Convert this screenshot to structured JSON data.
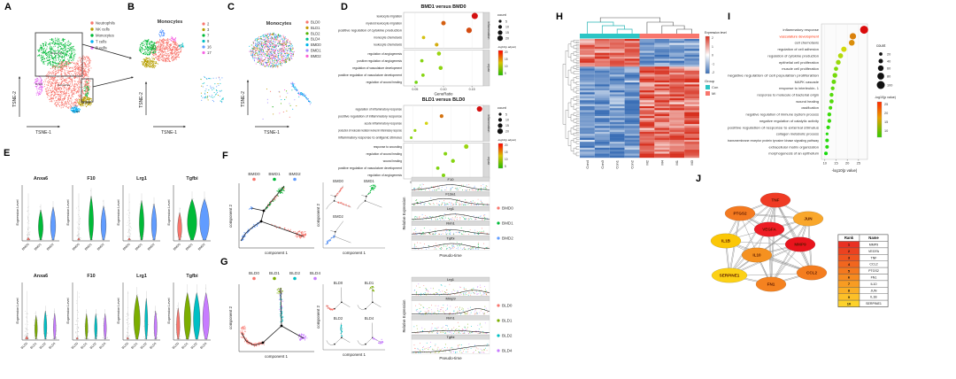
{
  "figure_panels": {
    "a": "A",
    "b": "B",
    "c": "C",
    "d": "D",
    "e": "E",
    "f": "F",
    "g": "G",
    "h": "H",
    "i": "I",
    "j": "J"
  },
  "panelA": {
    "axes": {
      "x": "TSNE-1",
      "y": "TSNE-2"
    },
    "legend": [
      {
        "label": "Neutrophils",
        "color": "#F8766D"
      },
      {
        "label": "NK cells",
        "color": "#B79F00"
      },
      {
        "label": "Monocytes",
        "color": "#00BA38"
      },
      {
        "label": "T cells",
        "color": "#00B0F6"
      },
      {
        "label": "B cells",
        "color": "#E76BF3"
      }
    ]
  },
  "panelB": {
    "title": "Monocytes",
    "axes": {
      "x": "TSNE-1",
      "y": "TSNE-2"
    },
    "legend": [
      {
        "label": "2",
        "color": "#F8766D"
      },
      {
        "label": "3",
        "color": "#B79F00"
      },
      {
        "label": "7",
        "color": "#00BA38"
      },
      {
        "label": "9",
        "color": "#00BFC4"
      },
      {
        "label": "16",
        "color": "#619CFF"
      },
      {
        "label": "17",
        "color": "#F564E3"
      }
    ]
  },
  "panelC": {
    "title": "Monocytes",
    "axes": {
      "x": "TSNE-1",
      "y": "TSNE-2"
    },
    "legend": [
      {
        "label": "BLD0",
        "color": "#F8766D"
      },
      {
        "label": "BLD1",
        "color": "#C49A00"
      },
      {
        "label": "BLD2",
        "color": "#53B400"
      },
      {
        "label": "BLD4",
        "color": "#00C094"
      },
      {
        "label": "BMD0",
        "color": "#00B6EB"
      },
      {
        "label": "BMD1",
        "color": "#A58AFF"
      },
      {
        "label": "BMD2",
        "color": "#FB61D7"
      }
    ]
  },
  "panelD": {
    "xlabel": "GeneRatio",
    "legend": {
      "count_title": "count",
      "count_values": [
        5,
        10,
        15,
        20
      ],
      "color_title": "-log10(p.adjust)",
      "color_ticks": [
        20,
        15,
        10,
        5
      ]
    },
    "plots": [
      {
        "title": "BMD1 versus BMD0",
        "xticks": [
          "0.05",
          "0.10",
          "0.15"
        ],
        "tickvals": [
          0.05,
          0.1,
          0.15
        ],
        "xdomain": [
          0.03,
          0.17
        ],
        "facets": [
          {
            "name": "inflammation",
            "rows": [
              {
                "term": "leukocyte migration",
                "ratio": 0.155,
                "count": 24,
                "sig": 1.0
              },
              {
                "term": "myeloid leukocyte migration",
                "ratio": 0.1,
                "count": 14,
                "sig": 0.8
              },
              {
                "term": "positive regulation of cytokine production",
                "ratio": 0.145,
                "count": 20,
                "sig": 0.85
              },
              {
                "term": "monocyte chemotaxis",
                "ratio": 0.065,
                "count": 8,
                "sig": 0.55
              },
              {
                "term": "leukocyte chemotaxis",
                "ratio": 0.088,
                "count": 10,
                "sig": 0.6
              }
            ]
          },
          {
            "name": "repair",
            "rows": [
              {
                "term": "regulation of angiogenesis",
                "ratio": 0.092,
                "count": 12,
                "sig": 0.35
              },
              {
                "term": "positive regulation of angiogenesis",
                "ratio": 0.062,
                "count": 8,
                "sig": 0.3
              },
              {
                "term": "regulation of vasculature development",
                "ratio": 0.095,
                "count": 12,
                "sig": 0.32
              },
              {
                "term": "positive regulation of vasculature development",
                "ratio": 0.064,
                "count": 8,
                "sig": 0.3
              },
              {
                "term": "regulation of wound healing",
                "ratio": 0.052,
                "count": 7,
                "sig": 0.25
              }
            ]
          }
        ]
      },
      {
        "title": "BLD1 versus BLD0",
        "xticks": [
          "0.02",
          "0.03",
          "0.04",
          "0.05"
        ],
        "tickvals": [
          0.02,
          0.03,
          0.04,
          0.05
        ],
        "xdomain": [
          0.015,
          0.057
        ],
        "facets": [
          {
            "name": "inflammation",
            "rows": [
              {
                "term": "regulation of inflammatory response",
                "ratio": 0.055,
                "count": 20,
                "sig": 1.0
              },
              {
                "term": "positive regulation of inflammatory response",
                "ratio": 0.035,
                "count": 10,
                "sig": 0.75
              },
              {
                "term": "acute inflammatory response",
                "ratio": 0.027,
                "count": 7,
                "sig": 0.5
              },
              {
                "term": "production of molecular mediator involved in inflammatory response",
                "ratio": 0.021,
                "count": 5,
                "sig": 0.35
              },
              {
                "term": "inflammatory response to antigenic stimulus",
                "ratio": 0.019,
                "count": 4,
                "sig": 0.3
              }
            ]
          },
          {
            "name": "repair",
            "rows": [
              {
                "term": "response to wounding",
                "ratio": 0.048,
                "count": 14,
                "sig": 0.35
              },
              {
                "term": "regulation of wound healing",
                "ratio": 0.037,
                "count": 9,
                "sig": 0.3
              },
              {
                "term": "wound healing",
                "ratio": 0.041,
                "count": 11,
                "sig": 0.3
              },
              {
                "term": "positive regulation of vasculature development",
                "ratio": 0.033,
                "count": 8,
                "sig": 0.28
              },
              {
                "term": "regulation of angiogenesis",
                "ratio": 0.036,
                "count": 9,
                "sig": 0.28
              }
            ]
          }
        ]
      }
    ]
  },
  "panelE": {
    "ylabel": "Expression Level",
    "rows": [
      {
        "categories": [
          {
            "name": "BMD0",
            "color": "#F8766D"
          },
          {
            "name": "BMD1",
            "color": "#00BA38"
          },
          {
            "name": "BMD2",
            "color": "#619CFF"
          }
        ],
        "plots": [
          {
            "gene": "Anxa6",
            "violins": [
              {
                "h": 0.06,
                "w": 0.12
              },
              {
                "h": 0.55,
                "w": 0.5
              },
              {
                "h": 0.6,
                "w": 0.55
              }
            ]
          },
          {
            "gene": "F10",
            "violins": [
              {
                "h": 0.05,
                "w": 0.1
              },
              {
                "h": 0.8,
                "w": 0.5
              },
              {
                "h": 0.62,
                "w": 0.55
              }
            ]
          },
          {
            "gene": "Lrg1",
            "violins": [
              {
                "h": 0.05,
                "w": 0.1
              },
              {
                "h": 0.72,
                "w": 0.5
              },
              {
                "h": 0.66,
                "w": 0.55
              }
            ]
          },
          {
            "gene": "Tgfbi",
            "violins": [
              {
                "h": 0.5,
                "w": 0.45
              },
              {
                "h": 0.75,
                "w": 1.0
              },
              {
                "h": 0.75,
                "w": 1.0
              }
            ]
          }
        ]
      },
      {
        "categories": [
          {
            "name": "BLD0",
            "color": "#F8766D"
          },
          {
            "name": "BLD1",
            "color": "#7CAE00"
          },
          {
            "name": "BLD2",
            "color": "#00BFC4"
          },
          {
            "name": "BLD4",
            "color": "#C77CFF"
          }
        ],
        "plots": [
          {
            "gene": "Anxa6",
            "violins": [
              {
                "h": 0.08,
                "w": 0.15
              },
              {
                "h": 0.42,
                "w": 0.35
              },
              {
                "h": 0.5,
                "w": 0.4
              },
              {
                "h": 0.46,
                "w": 0.35
              }
            ]
          },
          {
            "gene": "F10",
            "violins": [
              {
                "h": 0.05,
                "w": 0.1
              },
              {
                "h": 0.45,
                "w": 0.35
              },
              {
                "h": 0.45,
                "w": 0.35
              },
              {
                "h": 0.45,
                "w": 0.35
              }
            ]
          },
          {
            "gene": "Lrg1",
            "violins": [
              {
                "h": 0.05,
                "w": 0.1
              },
              {
                "h": 0.78,
                "w": 0.85
              },
              {
                "h": 0.72,
                "w": 0.4
              },
              {
                "h": 0.5,
                "w": 0.4
              }
            ]
          },
          {
            "gene": "Tgfbi",
            "violins": [
              {
                "h": 0.55,
                "w": 0.45
              },
              {
                "h": 0.82,
                "w": 0.9
              },
              {
                "h": 0.82,
                "w": 0.9
              },
              {
                "h": 0.82,
                "w": 0.9
              }
            ]
          }
        ]
      }
    ]
  },
  "panelF": {
    "groups": [
      {
        "name": "BMD0",
        "color": "#F8766D"
      },
      {
        "name": "BMD1",
        "color": "#00BA38"
      },
      {
        "name": "BMD2",
        "color": "#619CFF"
      }
    ],
    "axes": {
      "x": "component 1",
      "y": "component 2"
    },
    "pseudotime": {
      "genes": [
        "F10",
        "F13a1",
        "Lrg1",
        "Rnh1",
        "Tgfbi"
      ],
      "xlabel": "Pseudo-time",
      "ylabel": "Relative Expression"
    }
  },
  "panelG": {
    "groups": [
      {
        "name": "BLD0",
        "color": "#F8766D"
      },
      {
        "name": "BLD1",
        "color": "#7CAE00"
      },
      {
        "name": "BLD2",
        "color": "#00BFC4"
      },
      {
        "name": "BLD4",
        "color": "#C77CFF"
      }
    ],
    "axes": {
      "x": "component 1",
      "y": "component 2"
    },
    "pseudotime": {
      "genes": [
        "Lrg1",
        "Mmp9",
        "Rnh1",
        "Tgfbi"
      ],
      "xlabel": "Pseudo-time",
      "ylabel": "Relative Expression"
    }
  },
  "panelH": {
    "columns": [
      "Con4",
      "Con3",
      "Con1",
      "Con2",
      "M2",
      "M4",
      "M1",
      "M3"
    ],
    "legend": {
      "expression_title": "Expression level",
      "expression_ticks": [
        "2",
        "1",
        "0",
        "-1",
        "-2"
      ],
      "group_title": "Group",
      "groups": [
        {
          "name": "Con",
          "color": "#2CC5C5"
        },
        {
          "name": "MI",
          "color": "#F8766D"
        }
      ]
    },
    "heatmap_spec": {
      "n_rows": 60,
      "split_row": 14,
      "high_color": "#D7301F",
      "low_color": "#3B6FB6",
      "mid_color": "#FFFFFF"
    }
  },
  "panelI": {
    "xlabel": "-log10(p value)",
    "xticks": [
      "10",
      "15",
      "20",
      "25"
    ],
    "tickvals": [
      10,
      15,
      20,
      25
    ],
    "highlight_color": "#FF2A00",
    "terms": [
      {
        "term": "inflammatory response",
        "value": 27.5,
        "count": 100,
        "highlight": false
      },
      {
        "term": "vasculature development",
        "value": 22.5,
        "count": 72,
        "highlight": true
      },
      {
        "term": "cell chemotaxis",
        "value": 22.0,
        "count": 62,
        "highlight": false
      },
      {
        "term": "regulation of cell adhesion",
        "value": 18.5,
        "count": 55,
        "highlight": false
      },
      {
        "term": "regulation of cytokine production",
        "value": 17.0,
        "count": 50,
        "highlight": false
      },
      {
        "term": "epithelial cell proliferation",
        "value": 16.0,
        "count": 45,
        "highlight": false
      },
      {
        "term": "muscle cell proliferation",
        "value": 15.0,
        "count": 35,
        "highlight": false
      },
      {
        "term": "negative regulation of cell population proliferation",
        "value": 14.5,
        "count": 45,
        "highlight": false
      },
      {
        "term": "MAPK cascade",
        "value": 14.0,
        "count": 40,
        "highlight": false
      },
      {
        "term": "response to interleukin- 1",
        "value": 13.5,
        "count": 28,
        "highlight": false
      },
      {
        "term": "response to molecule of bacterial origin",
        "value": 13.0,
        "count": 30,
        "highlight": false
      },
      {
        "term": "wound healing",
        "value": 13.0,
        "count": 35,
        "highlight": false
      },
      {
        "term": "ossification",
        "value": 12.5,
        "count": 25,
        "highlight": false
      },
      {
        "term": "negative regulation of immune system process",
        "value": 12.0,
        "count": 30,
        "highlight": false
      },
      {
        "term": "negative regulation of catalytic activity",
        "value": 12.0,
        "count": 30,
        "highlight": false
      },
      {
        "term": "positive regulation of response to external stimulus",
        "value": 11.5,
        "count": 28,
        "highlight": false
      },
      {
        "term": "collagen metabolic process",
        "value": 11.0,
        "count": 12,
        "highlight": false
      },
      {
        "term": "transmembrane receptor protein tyrosine kinase signaling pathway",
        "value": 11.0,
        "count": 25,
        "highlight": false
      },
      {
        "term": "extracellular matrix organization",
        "value": 11.0,
        "count": 25,
        "highlight": false
      },
      {
        "term": "morphogenesis of an epithelium",
        "value": 10.5,
        "count": 25,
        "highlight": false
      }
    ],
    "legend": {
      "count_title": "count",
      "count_values": [
        20,
        40,
        60,
        80,
        100
      ],
      "color_title": "-log10(p value)",
      "color_ticks": [
        "25",
        "20",
        "15",
        "10"
      ]
    }
  },
  "panelJ": {
    "nodes": [
      {
        "name": "TNF",
        "color": "#EF3B24"
      },
      {
        "name": "PTGS2",
        "color": "#F47A20"
      },
      {
        "name": "JUN",
        "color": "#F9A72B"
      },
      {
        "name": "VEGFA",
        "color": "#ED1C24"
      },
      {
        "name": "IL1B",
        "color": "#FBC707"
      },
      {
        "name": "MMP9",
        "color": "#E8141C"
      },
      {
        "name": "IL10",
        "color": "#F59120"
      },
      {
        "name": "SERPINE1",
        "color": "#FCD116"
      },
      {
        "name": "FN1",
        "color": "#F58220"
      },
      {
        "name": "CCL2",
        "color": "#F47D1F"
      }
    ],
    "table": {
      "headers": [
        "Rank",
        "Name"
      ],
      "rows": [
        {
          "rank": "1",
          "name": "MMP9",
          "color": "#E93123"
        },
        {
          "rank": "2",
          "name": "VEGFA",
          "color": "#EB4220"
        },
        {
          "rank": "3",
          "name": "TNF",
          "color": "#EF541F"
        },
        {
          "rank": "4",
          "name": "CCL2",
          "color": "#F1661E"
        },
        {
          "rank": "5",
          "name": "PTGS2",
          "color": "#F4781E"
        },
        {
          "rank": "6",
          "name": "FN1",
          "color": "#F68A20"
        },
        {
          "rank": "7",
          "name": "IL10",
          "color": "#F89C22"
        },
        {
          "rank": "8",
          "name": "JUN",
          "color": "#FAAE25"
        },
        {
          "rank": "9",
          "name": "IL1B",
          "color": "#FCC028"
        },
        {
          "rank": "10",
          "name": "SERPINE1",
          "color": "#FDD22B"
        }
      ]
    }
  }
}
